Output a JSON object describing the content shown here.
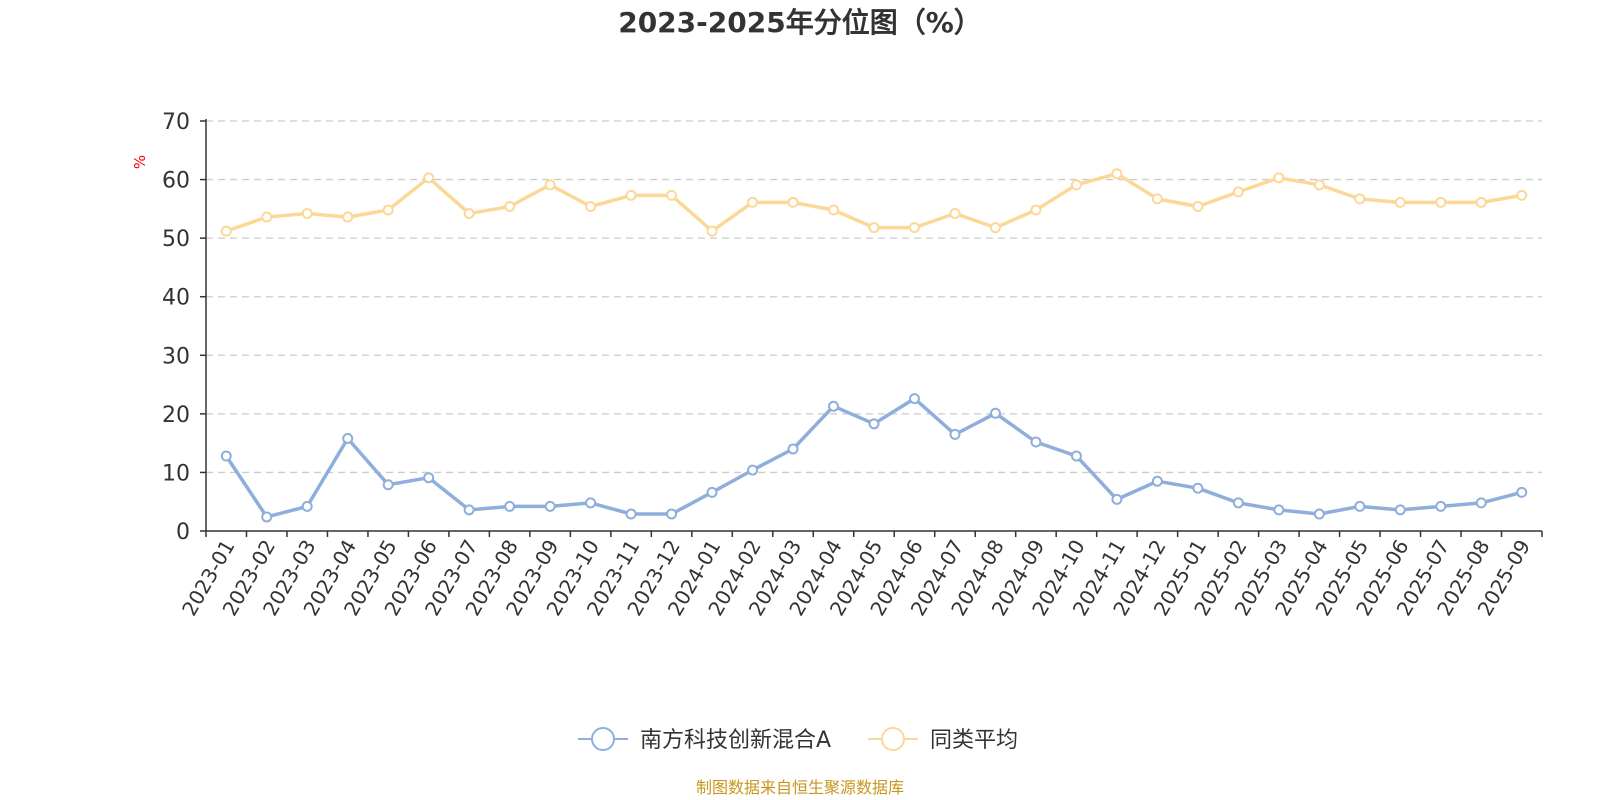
{
  "chart_data": {
    "type": "line",
    "title": "2023-2025年分位图（%）",
    "ylabel": "%",
    "ylim": [
      0,
      70
    ],
    "yticks": [
      0,
      10,
      20,
      30,
      40,
      50,
      60,
      70
    ],
    "grid": true,
    "legend_position": "bottom",
    "categories": [
      "2023-01",
      "2023-02",
      "2023-03",
      "2023-04",
      "2023-05",
      "2023-06",
      "2023-07",
      "2023-08",
      "2023-09",
      "2023-10",
      "2023-11",
      "2023-12",
      "2024-01",
      "2024-02",
      "2024-03",
      "2024-04",
      "2024-05",
      "2024-06",
      "2024-07",
      "2024-08",
      "2024-09",
      "2024-10",
      "2024-11",
      "2024-12",
      "2025-01",
      "2025-02",
      "2025-03",
      "2025-04",
      "2025-05",
      "2025-06",
      "2025-07",
      "2025-08",
      "2025-09"
    ],
    "series": [
      {
        "name": "南方科技创新混合A",
        "color": "#8eaedb",
        "values": [
          12.8,
          2.4,
          4.2,
          15.8,
          7.9,
          9.1,
          3.6,
          4.2,
          4.2,
          4.8,
          2.9,
          2.9,
          6.6,
          10.4,
          14.0,
          21.3,
          18.3,
          22.6,
          16.5,
          20.1,
          15.2,
          12.8,
          5.4,
          8.5,
          7.3,
          4.8,
          3.6,
          2.9,
          4.2,
          3.6,
          4.2,
          4.8,
          6.6
        ]
      },
      {
        "name": "同类平均",
        "color": "#fcd898",
        "values": [
          51.2,
          53.6,
          54.2,
          53.6,
          54.8,
          60.3,
          54.2,
          55.4,
          59.1,
          55.4,
          57.3,
          57.3,
          51.2,
          56.1,
          56.1,
          54.8,
          51.8,
          51.8,
          54.2,
          51.8,
          54.8,
          59.1,
          61.0,
          56.7,
          55.4,
          57.9,
          60.3,
          59.1,
          56.7,
          56.1,
          56.1,
          56.1,
          57.3
        ]
      }
    ]
  },
  "footer": {
    "source": "制图数据来自恒生聚源数据库"
  },
  "colors": {
    "title": "#333333",
    "axis": "#333333",
    "grid": "#cccccc",
    "unit": "#ff0000",
    "source": "#c8961e"
  }
}
